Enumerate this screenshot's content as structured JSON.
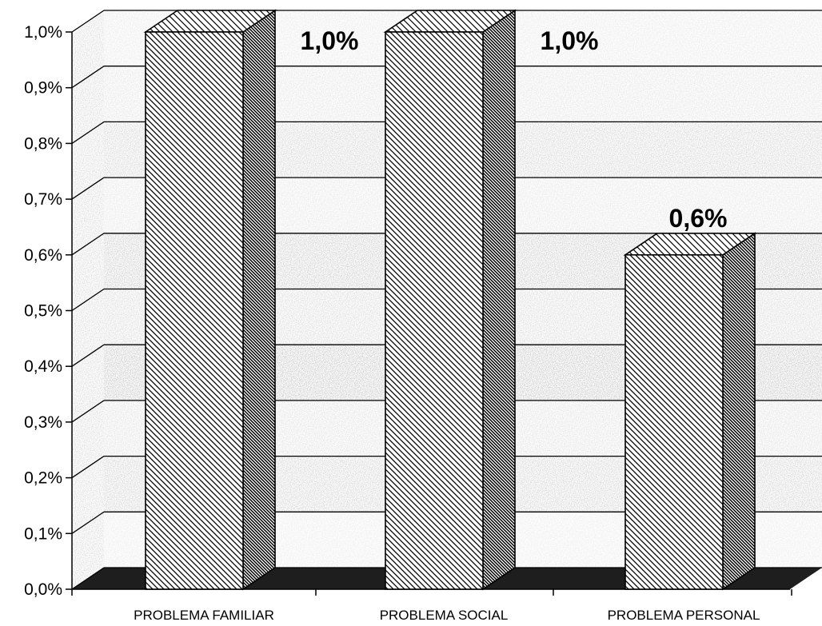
{
  "chart_data": {
    "type": "bar",
    "categories": [
      "PROBLEMA FAMILIAR",
      "PROBLEMA SOCIAL",
      "PROBLEMA PERSONAL"
    ],
    "values": [
      1.0,
      1.0,
      0.6
    ],
    "value_labels": [
      "1,0%",
      "1,0%",
      "0,6%"
    ],
    "title": "",
    "xlabel": "",
    "ylabel": "",
    "ylim": [
      0,
      1.0
    ],
    "y_ticks": [
      "0,0%",
      "0,1%",
      "0,2%",
      "0,3%",
      "0,4%",
      "0,5%",
      "0,6%",
      "0,7%",
      "0,8%",
      "0,9%",
      "1,0%"
    ],
    "grid": true,
    "legend": "none",
    "style": "3d-hatched-grayscale"
  }
}
